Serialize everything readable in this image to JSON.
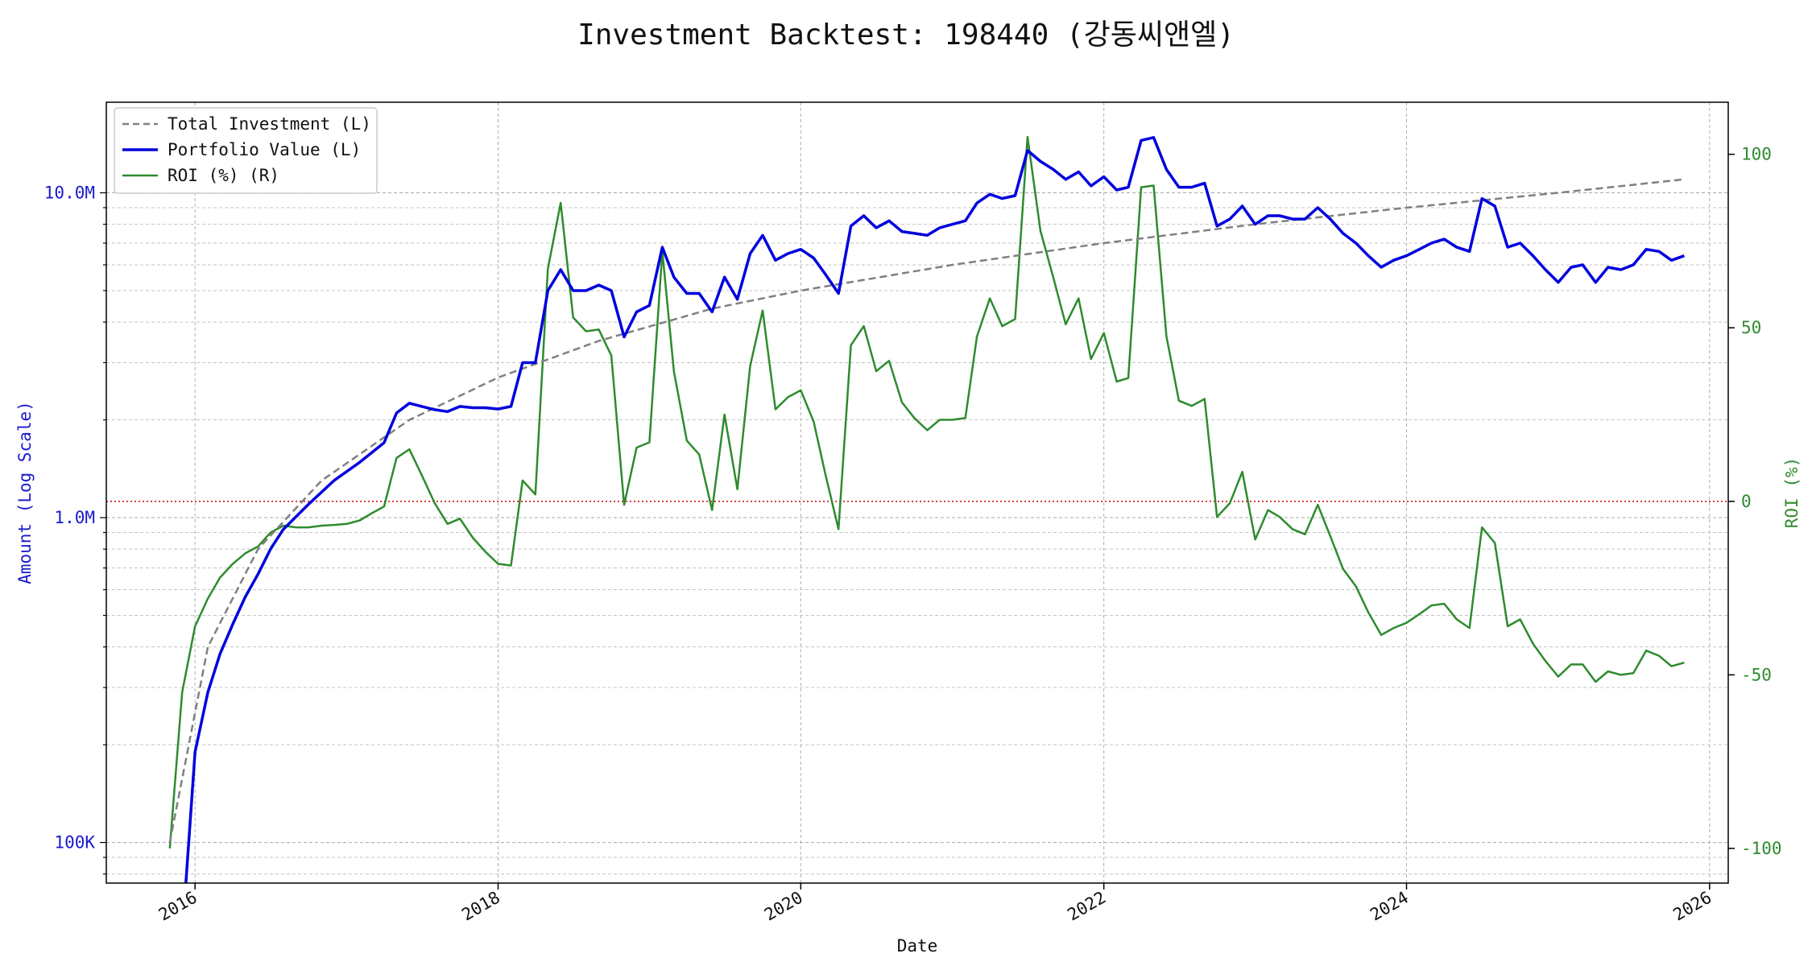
{
  "chart_data": {
    "type": "line",
    "title": "Investment Backtest: 198440 (강동씨앤엘)",
    "xlabel": "Date",
    "ylabel_left": "Amount (Log Scale)",
    "ylabel_right": "ROI (%)",
    "x_range": [
      "2015-06-01",
      "2026-02-15"
    ],
    "ylim_left": [
      75000,
      19000000
    ],
    "ylim_right": [
      -110,
      115
    ],
    "yscale_left": "log",
    "grid": true,
    "legend_placement": "top-left",
    "x_ticks": [
      "2016",
      "2018",
      "2020",
      "2022",
      "2024",
      "2026"
    ],
    "y_ticks_left": [
      {
        "value": 100000,
        "label": "100K"
      },
      {
        "value": 1000000,
        "label": "1.0M"
      },
      {
        "value": 10000000,
        "label": "10.0M"
      }
    ],
    "y_ticks_right": [
      {
        "value": 100,
        "label": "100"
      },
      {
        "value": 50,
        "label": "50"
      },
      {
        "value": 0,
        "label": "0"
      },
      {
        "value": -50,
        "label": "-50"
      },
      {
        "value": -100,
        "label": "-100"
      }
    ],
    "reference_line": {
      "axis": "right",
      "value": 0,
      "color": "#cc0000",
      "style": "dotted"
    },
    "series": [
      {
        "name": "Total Investment (L)",
        "axis": "left",
        "color": "#808080",
        "style": "dashed",
        "x": [
          "2015-11-01",
          "2016-02-01",
          "2016-06-01",
          "2016-11-01",
          "2017-06-01",
          "2018-01-01",
          "2018-09-01",
          "2019-06-01",
          "2020-01-01",
          "2021-01-01",
          "2022-01-01",
          "2023-01-01",
          "2024-01-01",
          "2025-01-01",
          "2025-11-01"
        ],
        "values": [
          100000,
          400000,
          800000,
          1300000,
          2000000,
          2700000,
          3500000,
          4400000,
          5000000,
          6000000,
          7000000,
          8000000,
          9000000,
          10000000,
          11000000
        ]
      },
      {
        "name": "Portfolio Value (L)",
        "axis": "left",
        "color": "#0000dd",
        "style": "solid",
        "x": [
          "2015-12-10",
          "2016-01-01",
          "2016-02-01",
          "2016-03-01",
          "2016-04-01",
          "2016-05-01",
          "2016-06-01",
          "2016-07-01",
          "2016-08-01",
          "2016-10-01",
          "2016-12-01",
          "2017-02-01",
          "2017-04-01",
          "2017-05-01",
          "2017-06-01",
          "2017-07-01",
          "2017-08-01",
          "2017-09-01",
          "2017-10-01",
          "2017-11-01",
          "2017-12-01",
          "2018-01-01",
          "2018-02-01",
          "2018-03-01",
          "2018-04-01",
          "2018-05-01",
          "2018-06-01",
          "2018-07-01",
          "2018-08-01",
          "2018-09-01",
          "2018-10-01",
          "2018-11-01",
          "2018-12-01",
          "2019-01-01",
          "2019-02-01",
          "2019-03-01",
          "2019-04-01",
          "2019-05-01",
          "2019-06-01",
          "2019-07-01",
          "2019-08-01",
          "2019-09-01",
          "2019-10-01",
          "2019-11-01",
          "2019-12-01",
          "2020-01-01",
          "2020-02-01",
          "2020-03-01",
          "2020-04-01",
          "2020-05-01",
          "2020-06-01",
          "2020-07-01",
          "2020-08-01",
          "2020-09-01",
          "2020-10-01",
          "2020-11-01",
          "2020-12-01",
          "2021-01-01",
          "2021-02-01",
          "2021-03-01",
          "2021-04-01",
          "2021-05-01",
          "2021-06-01",
          "2021-07-01",
          "2021-08-01",
          "2021-09-01",
          "2021-10-01",
          "2021-11-01",
          "2021-12-01",
          "2022-01-01",
          "2022-02-01",
          "2022-03-01",
          "2022-04-01",
          "2022-05-01",
          "2022-06-01",
          "2022-07-01",
          "2022-08-01",
          "2022-09-01",
          "2022-10-01",
          "2022-11-01",
          "2022-12-01",
          "2023-01-01",
          "2023-02-01",
          "2023-03-01",
          "2023-04-01",
          "2023-05-01",
          "2023-06-01",
          "2023-07-01",
          "2023-08-01",
          "2023-09-01",
          "2023-10-01",
          "2023-11-01",
          "2023-12-01",
          "2024-01-01",
          "2024-02-01",
          "2024-03-01",
          "2024-04-01",
          "2024-05-01",
          "2024-06-01",
          "2024-07-01",
          "2024-08-01",
          "2024-09-01",
          "2024-10-01",
          "2024-11-01",
          "2024-12-01",
          "2025-01-01",
          "2025-02-01",
          "2025-03-01",
          "2025-04-01",
          "2025-05-01",
          "2025-06-01",
          "2025-07-01",
          "2025-08-01",
          "2025-09-01",
          "2025-10-01",
          "2025-11-01"
        ],
        "values": [
          55000,
          190000,
          290000,
          380000,
          470000,
          570000,
          670000,
          800000,
          920000,
          1100000,
          1300000,
          1480000,
          1700000,
          2100000,
          2250000,
          2200000,
          2150000,
          2120000,
          2200000,
          2180000,
          2180000,
          2160000,
          2200000,
          3000000,
          3000000,
          5000000,
          5800000,
          5000000,
          5000000,
          5200000,
          5000000,
          3600000,
          4300000,
          4500000,
          6800000,
          5500000,
          4900000,
          4900000,
          4300000,
          5500000,
          4700000,
          6500000,
          7400000,
          6200000,
          6500000,
          6700000,
          6300000,
          5600000,
          4900000,
          7900000,
          8500000,
          7800000,
          8200000,
          7600000,
          7500000,
          7400000,
          7800000,
          8000000,
          8200000,
          9300000,
          9900000,
          9600000,
          9800000,
          13500000,
          12500000,
          11800000,
          11000000,
          11600000,
          10500000,
          11200000,
          10200000,
          10400000,
          14500000,
          14800000,
          11800000,
          10400000,
          10400000,
          10700000,
          7900000,
          8300000,
          9100000,
          8000000,
          8500000,
          8500000,
          8300000,
          8300000,
          9000000,
          8300000,
          7500000,
          7000000,
          6400000,
          5900000,
          6200000,
          6400000,
          6700000,
          7000000,
          7200000,
          6800000,
          6600000,
          9600000,
          9100000,
          6800000,
          7000000,
          6400000,
          5800000,
          5300000,
          5900000,
          6000000,
          5300000,
          5900000,
          5800000,
          6000000,
          6700000,
          6600000,
          6200000,
          6400000
        ]
      },
      {
        "name": "ROI (%) (R)",
        "axis": "right",
        "color": "#2e8b2e",
        "style": "solid",
        "x": [
          "2015-11-01",
          "2015-12-01",
          "2016-01-01",
          "2016-02-01",
          "2016-03-01",
          "2016-04-01",
          "2016-05-01",
          "2016-06-01",
          "2016-07-01",
          "2016-08-01",
          "2016-09-01",
          "2016-10-01",
          "2016-11-01",
          "2016-12-01",
          "2017-01-01",
          "2017-02-01",
          "2017-03-01",
          "2017-04-01",
          "2017-05-01",
          "2017-06-01",
          "2017-07-01",
          "2017-08-01",
          "2017-09-01",
          "2017-10-01",
          "2017-11-01",
          "2017-12-01",
          "2018-01-01",
          "2018-02-01",
          "2018-03-01",
          "2018-04-01",
          "2018-05-01",
          "2018-06-01",
          "2018-07-01",
          "2018-08-01",
          "2018-09-01",
          "2018-10-01",
          "2018-11-01",
          "2018-12-01",
          "2019-01-01",
          "2019-02-01",
          "2019-03-01",
          "2019-04-01",
          "2019-05-01",
          "2019-06-01",
          "2019-07-01",
          "2019-08-01",
          "2019-09-01",
          "2019-10-01",
          "2019-11-01",
          "2019-12-01",
          "2020-01-01",
          "2020-02-01",
          "2020-03-01",
          "2020-04-01",
          "2020-05-01",
          "2020-06-01",
          "2020-07-01",
          "2020-08-01",
          "2020-09-01",
          "2020-10-01",
          "2020-11-01",
          "2020-12-01",
          "2021-01-01",
          "2021-02-01",
          "2021-03-01",
          "2021-04-01",
          "2021-05-01",
          "2021-06-01",
          "2021-07-01",
          "2021-08-01",
          "2021-09-01",
          "2021-10-01",
          "2021-11-01",
          "2021-12-01",
          "2022-01-01",
          "2022-02-01",
          "2022-03-01",
          "2022-04-01",
          "2022-05-01",
          "2022-06-01",
          "2022-07-01",
          "2022-08-01",
          "2022-09-01",
          "2022-10-01",
          "2022-11-01",
          "2022-12-01",
          "2023-01-01",
          "2023-02-01",
          "2023-03-01",
          "2023-04-01",
          "2023-05-01",
          "2023-06-01",
          "2023-07-01",
          "2023-08-01",
          "2023-09-01",
          "2023-10-01",
          "2023-11-01",
          "2023-12-01",
          "2024-01-01",
          "2024-02-01",
          "2024-03-01",
          "2024-04-01",
          "2024-05-01",
          "2024-06-01",
          "2024-07-01",
          "2024-08-01",
          "2024-09-01",
          "2024-10-01",
          "2024-11-01",
          "2024-12-01",
          "2025-01-01",
          "2025-02-01",
          "2025-03-01",
          "2025-04-01",
          "2025-05-01",
          "2025-06-01",
          "2025-07-01",
          "2025-08-01",
          "2025-09-01",
          "2025-10-01",
          "2025-11-01"
        ],
        "values": [
          -100,
          -55,
          -36,
          -28,
          -22,
          -18,
          -15,
          -13,
          -9,
          -7,
          -7.5,
          -7.5,
          -7,
          -6.8,
          -6.5,
          -5.5,
          -3.5,
          -1.5,
          12.5,
          15,
          7.5,
          -0.5,
          -6.5,
          -5,
          -10.5,
          -14.5,
          -18,
          -18.5,
          6,
          2,
          67,
          86,
          53,
          49,
          49.5,
          42,
          -1,
          15.5,
          17,
          72,
          37.5,
          17.5,
          13.5,
          -2.5,
          25,
          3.5,
          39,
          55,
          26.5,
          30,
          32,
          23,
          7.5,
          -8,
          45,
          50.5,
          37.5,
          40.5,
          28.5,
          24,
          20.5,
          23.5,
          23.5,
          24,
          47.5,
          58.5,
          50.5,
          52.5,
          105,
          78,
          64.5,
          51,
          58.5,
          41,
          48.5,
          34.5,
          35.5,
          90.5,
          91,
          47.5,
          29,
          27.5,
          29.5,
          -4.5,
          -0.5,
          8.5,
          -11,
          -2.5,
          -4.5,
          -8,
          -9.5,
          -1,
          -10,
          -19.5,
          -24.5,
          -32,
          -38.5,
          -36.5,
          -35,
          -32.5,
          -30,
          -29.5,
          -34,
          -36.5,
          -7.5,
          -12,
          -36,
          -34,
          -41,
          -46,
          -50.5,
          -47,
          -47,
          -52,
          -49,
          -50,
          -49.5,
          -43,
          -44.5,
          -47.5,
          -46.5
        ]
      }
    ]
  }
}
